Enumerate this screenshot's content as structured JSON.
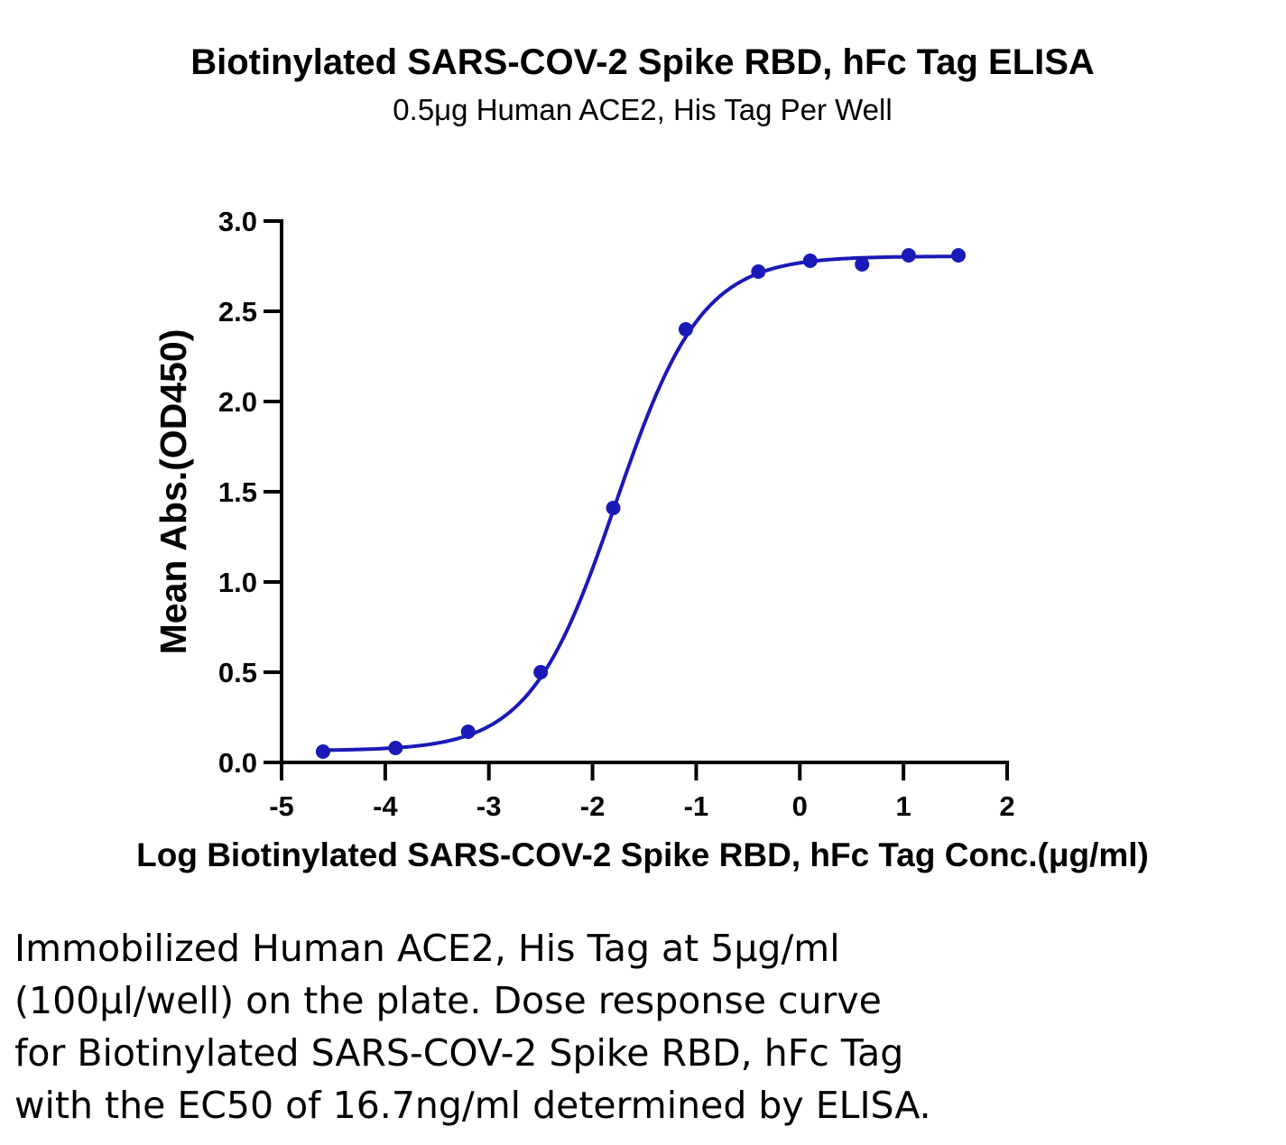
{
  "chart_data": {
    "type": "scatter",
    "title": "Biotinylated SARS-COV-2 Spike RBD, hFc Tag ELISA",
    "subtitle": "0.5μg Human ACE2, His Tag Per Well",
    "xlabel": "Log Biotinylated SARS-COV-2 Spike RBD, hFc Tag Conc.(μg/ml)",
    "ylabel": "Mean Abs.(OD450)",
    "xlim": [
      -5,
      2
    ],
    "ylim": [
      0,
      3
    ],
    "x_ticks": [
      "-5",
      "-4",
      "-3",
      "-2",
      "-1",
      "0",
      "1",
      "2"
    ],
    "y_ticks": [
      "0.0",
      "0.5",
      "1.0",
      "1.5",
      "2.0",
      "2.5",
      "3.0"
    ],
    "grid": false,
    "legend": "none",
    "series": [
      {
        "color": "#1a1ab8",
        "x": [
          -4.6,
          -3.9,
          -3.2,
          -2.5,
          -1.8,
          -1.1,
          -0.4,
          0.1,
          0.6,
          1.05,
          1.53
        ],
        "y": [
          0.06,
          0.08,
          0.17,
          0.5,
          1.41,
          2.4,
          2.72,
          2.78,
          2.76,
          2.81,
          2.81
        ]
      }
    ],
    "fit": {
      "model": "four-parameter logistic",
      "bottom": 0.065,
      "top": 2.805,
      "logEC50": -1.777,
      "hill": 1.05,
      "color": "#1a1ab8"
    }
  },
  "caption": {
    "line1": "Immobilized Human ACE2, His Tag at 5μg/ml",
    "line2": "(100μl/well) on the plate. Dose response curve",
    "line3": "for Biotinylated SARS-COV-2 Spike RBD, hFc Tag",
    "line4": "with the EC50 of 16.7ng/ml determined by ELISA."
  }
}
